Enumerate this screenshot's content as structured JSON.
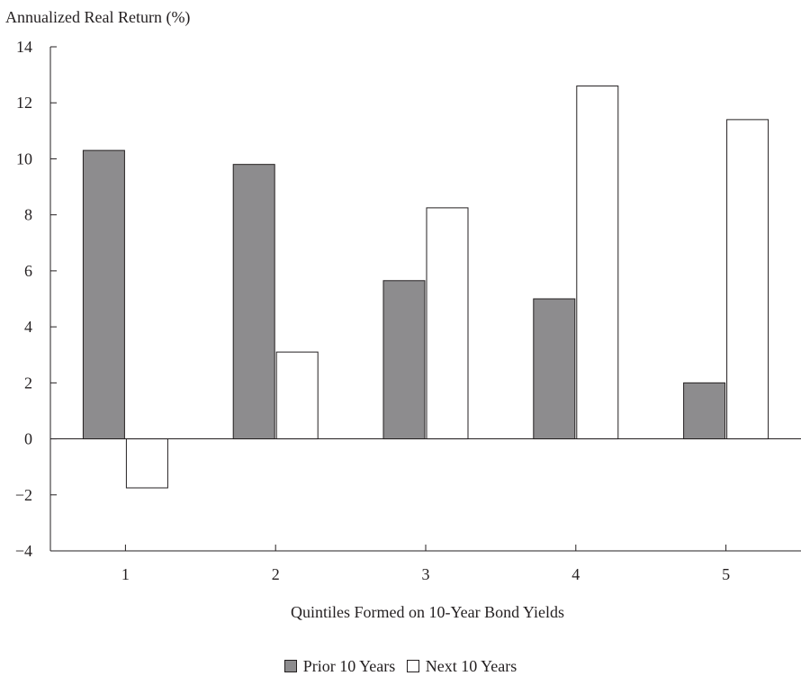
{
  "chart_data": {
    "type": "bar",
    "ylabel": "Annualized Real Return (%)",
    "xlabel": "Quintiles Formed on 10-Year Bond Yields",
    "categories": [
      "1",
      "2",
      "3",
      "4",
      "5"
    ],
    "ylim": [
      -4,
      14
    ],
    "yticks": [
      "−4",
      "−2",
      "0",
      "2",
      "4",
      "6",
      "8",
      "10",
      "12",
      "14"
    ],
    "grid": false,
    "legend_position": "bottom",
    "series": [
      {
        "name": "Prior 10 Years",
        "values": [
          10.3,
          9.8,
          5.65,
          5.0,
          2.0
        ],
        "color": "#8d8c8e"
      },
      {
        "name": "Next 10 Years",
        "values": [
          -1.75,
          3.1,
          8.25,
          12.6,
          11.4
        ],
        "color": "#ffffff"
      }
    ]
  },
  "legend": {
    "items": [
      {
        "label": "Prior 10 Years",
        "color": "#8d8c8e"
      },
      {
        "label": "Next 10 Years",
        "color": "#ffffff"
      }
    ]
  }
}
